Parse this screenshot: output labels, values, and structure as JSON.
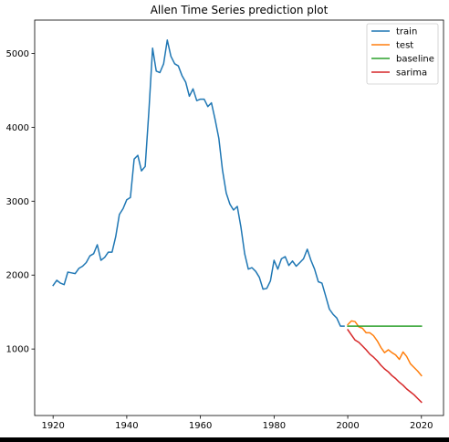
{
  "chart_data": {
    "type": "line",
    "title": "Allen Time Series prediction plot",
    "xlabel": "",
    "ylabel": "",
    "xlim": [
      1915,
      2026
    ],
    "ylim": [
      100,
      5450
    ],
    "xticks": [
      1920,
      1940,
      1960,
      1980,
      2000,
      2020
    ],
    "yticks": [
      1000,
      2000,
      3000,
      4000,
      5000
    ],
    "grid": false,
    "legend_position": "top-right",
    "series": [
      {
        "name": "train",
        "color": "#1f77b4",
        "x": [
          1920,
          1921,
          1922,
          1923,
          1924,
          1925,
          1926,
          1927,
          1928,
          1929,
          1930,
          1931,
          1932,
          1933,
          1934,
          1935,
          1936,
          1937,
          1938,
          1939,
          1940,
          1941,
          1942,
          1943,
          1944,
          1945,
          1946,
          1947,
          1948,
          1949,
          1950,
          1951,
          1952,
          1953,
          1954,
          1955,
          1956,
          1957,
          1958,
          1959,
          1960,
          1961,
          1962,
          1963,
          1964,
          1965,
          1966,
          1967,
          1968,
          1969,
          1970,
          1971,
          1972,
          1973,
          1974,
          1975,
          1976,
          1977,
          1978,
          1979,
          1980,
          1981,
          1982,
          1983,
          1984,
          1985,
          1986,
          1987,
          1988,
          1989,
          1990,
          1991,
          1992,
          1993,
          1994,
          1995,
          1996,
          1997,
          1998,
          1999
        ],
        "y": [
          1860,
          1930,
          1890,
          1870,
          2040,
          2030,
          2020,
          2090,
          2120,
          2170,
          2260,
          2290,
          2410,
          2200,
          2240,
          2310,
          2310,
          2520,
          2820,
          2900,
          3020,
          3050,
          3570,
          3620,
          3410,
          3470,
          4210,
          5070,
          4760,
          4740,
          4860,
          5180,
          4960,
          4860,
          4830,
          4700,
          4610,
          4420,
          4520,
          4360,
          4380,
          4380,
          4280,
          4330,
          4100,
          3850,
          3420,
          3110,
          2960,
          2880,
          2930,
          2650,
          2290,
          2080,
          2100,
          2050,
          1970,
          1810,
          1820,
          1920,
          2200,
          2080,
          2220,
          2250,
          2130,
          2190,
          2120,
          2170,
          2220,
          2350,
          2200,
          2080,
          1910,
          1890,
          1720,
          1540,
          1470,
          1420,
          1310,
          1310
        ]
      },
      {
        "name": "test",
        "color": "#ff7f0e",
        "x": [
          2000,
          2001,
          2002,
          2003,
          2004,
          2005,
          2006,
          2007,
          2008,
          2009,
          2010,
          2011,
          2012,
          2013,
          2014,
          2015,
          2016,
          2017,
          2018,
          2019,
          2020
        ],
        "y": [
          1330,
          1380,
          1370,
          1300,
          1280,
          1220,
          1220,
          1180,
          1110,
          1020,
          950,
          990,
          950,
          920,
          860,
          960,
          900,
          800,
          750,
          700,
          640
        ]
      },
      {
        "name": "baseline",
        "color": "#2ca02c",
        "x": [
          2000,
          2020
        ],
        "y": [
          1310,
          1310
        ]
      },
      {
        "name": "sarima",
        "color": "#d62728",
        "x": [
          2000,
          2001,
          2002,
          2003,
          2004,
          2005,
          2006,
          2007,
          2008,
          2009,
          2010,
          2011,
          2012,
          2013,
          2014,
          2015,
          2016,
          2017,
          2018,
          2019,
          2020
        ],
        "y": [
          1260,
          1190,
          1120,
          1090,
          1040,
          990,
          930,
          890,
          840,
          780,
          730,
          690,
          640,
          600,
          550,
          510,
          460,
          420,
          380,
          330,
          280
        ]
      }
    ]
  }
}
